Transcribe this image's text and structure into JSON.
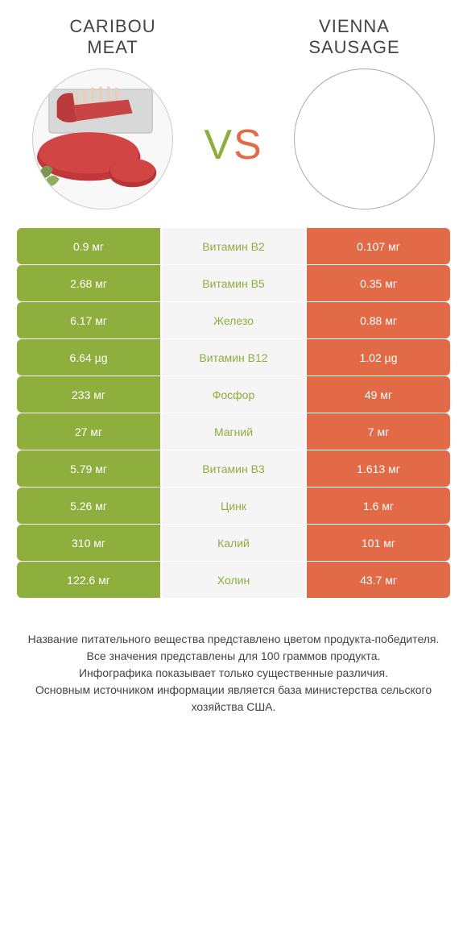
{
  "header": {
    "left_title_line1": "CARIBOU",
    "left_title_line2": "MEAT",
    "right_title_line1": "VIENNA",
    "right_title_line2": "SAUSAGE"
  },
  "vs": {
    "v": "V",
    "s": "S"
  },
  "colors": {
    "left_bg": "#8eae3e",
    "right_bg": "#e36a47",
    "mid_bg": "#f5f5f5",
    "nutrient_left_win": "#8eae3e",
    "nutrient_right_win": "#e36a47"
  },
  "rows": [
    {
      "left": "0.9 мг",
      "nutrient": "Витамин B2",
      "right": "0.107 мг",
      "winner": "left"
    },
    {
      "left": "2.68 мг",
      "nutrient": "Витамин B5",
      "right": "0.35 мг",
      "winner": "left"
    },
    {
      "left": "6.17 мг",
      "nutrient": "Железо",
      "right": "0.88 мг",
      "winner": "left"
    },
    {
      "left": "6.64 µg",
      "nutrient": "Витамин B12",
      "right": "1.02 µg",
      "winner": "left"
    },
    {
      "left": "233 мг",
      "nutrient": "Фосфор",
      "right": "49 мг",
      "winner": "left"
    },
    {
      "left": "27 мг",
      "nutrient": "Магний",
      "right": "7 мг",
      "winner": "left"
    },
    {
      "left": "5.79 мг",
      "nutrient": "Витамин B3",
      "right": "1.613 мг",
      "winner": "left"
    },
    {
      "left": "5.26 мг",
      "nutrient": "Цинк",
      "right": "1.6 мг",
      "winner": "left"
    },
    {
      "left": "310 мг",
      "nutrient": "Калий",
      "right": "101 мг",
      "winner": "left"
    },
    {
      "left": "122.6 мг",
      "nutrient": "Холин",
      "right": "43.7 мг",
      "winner": "left"
    }
  ],
  "footer": {
    "line1": "Название питательного вещества представлено цветом продукта-победителя.",
    "line2": "Все значения представлены для 100 граммов продукта.",
    "line3": "Инфографика показывает только существенные различия.",
    "line4": "Основным источником информации является база министерства сельского хозяйства США."
  }
}
